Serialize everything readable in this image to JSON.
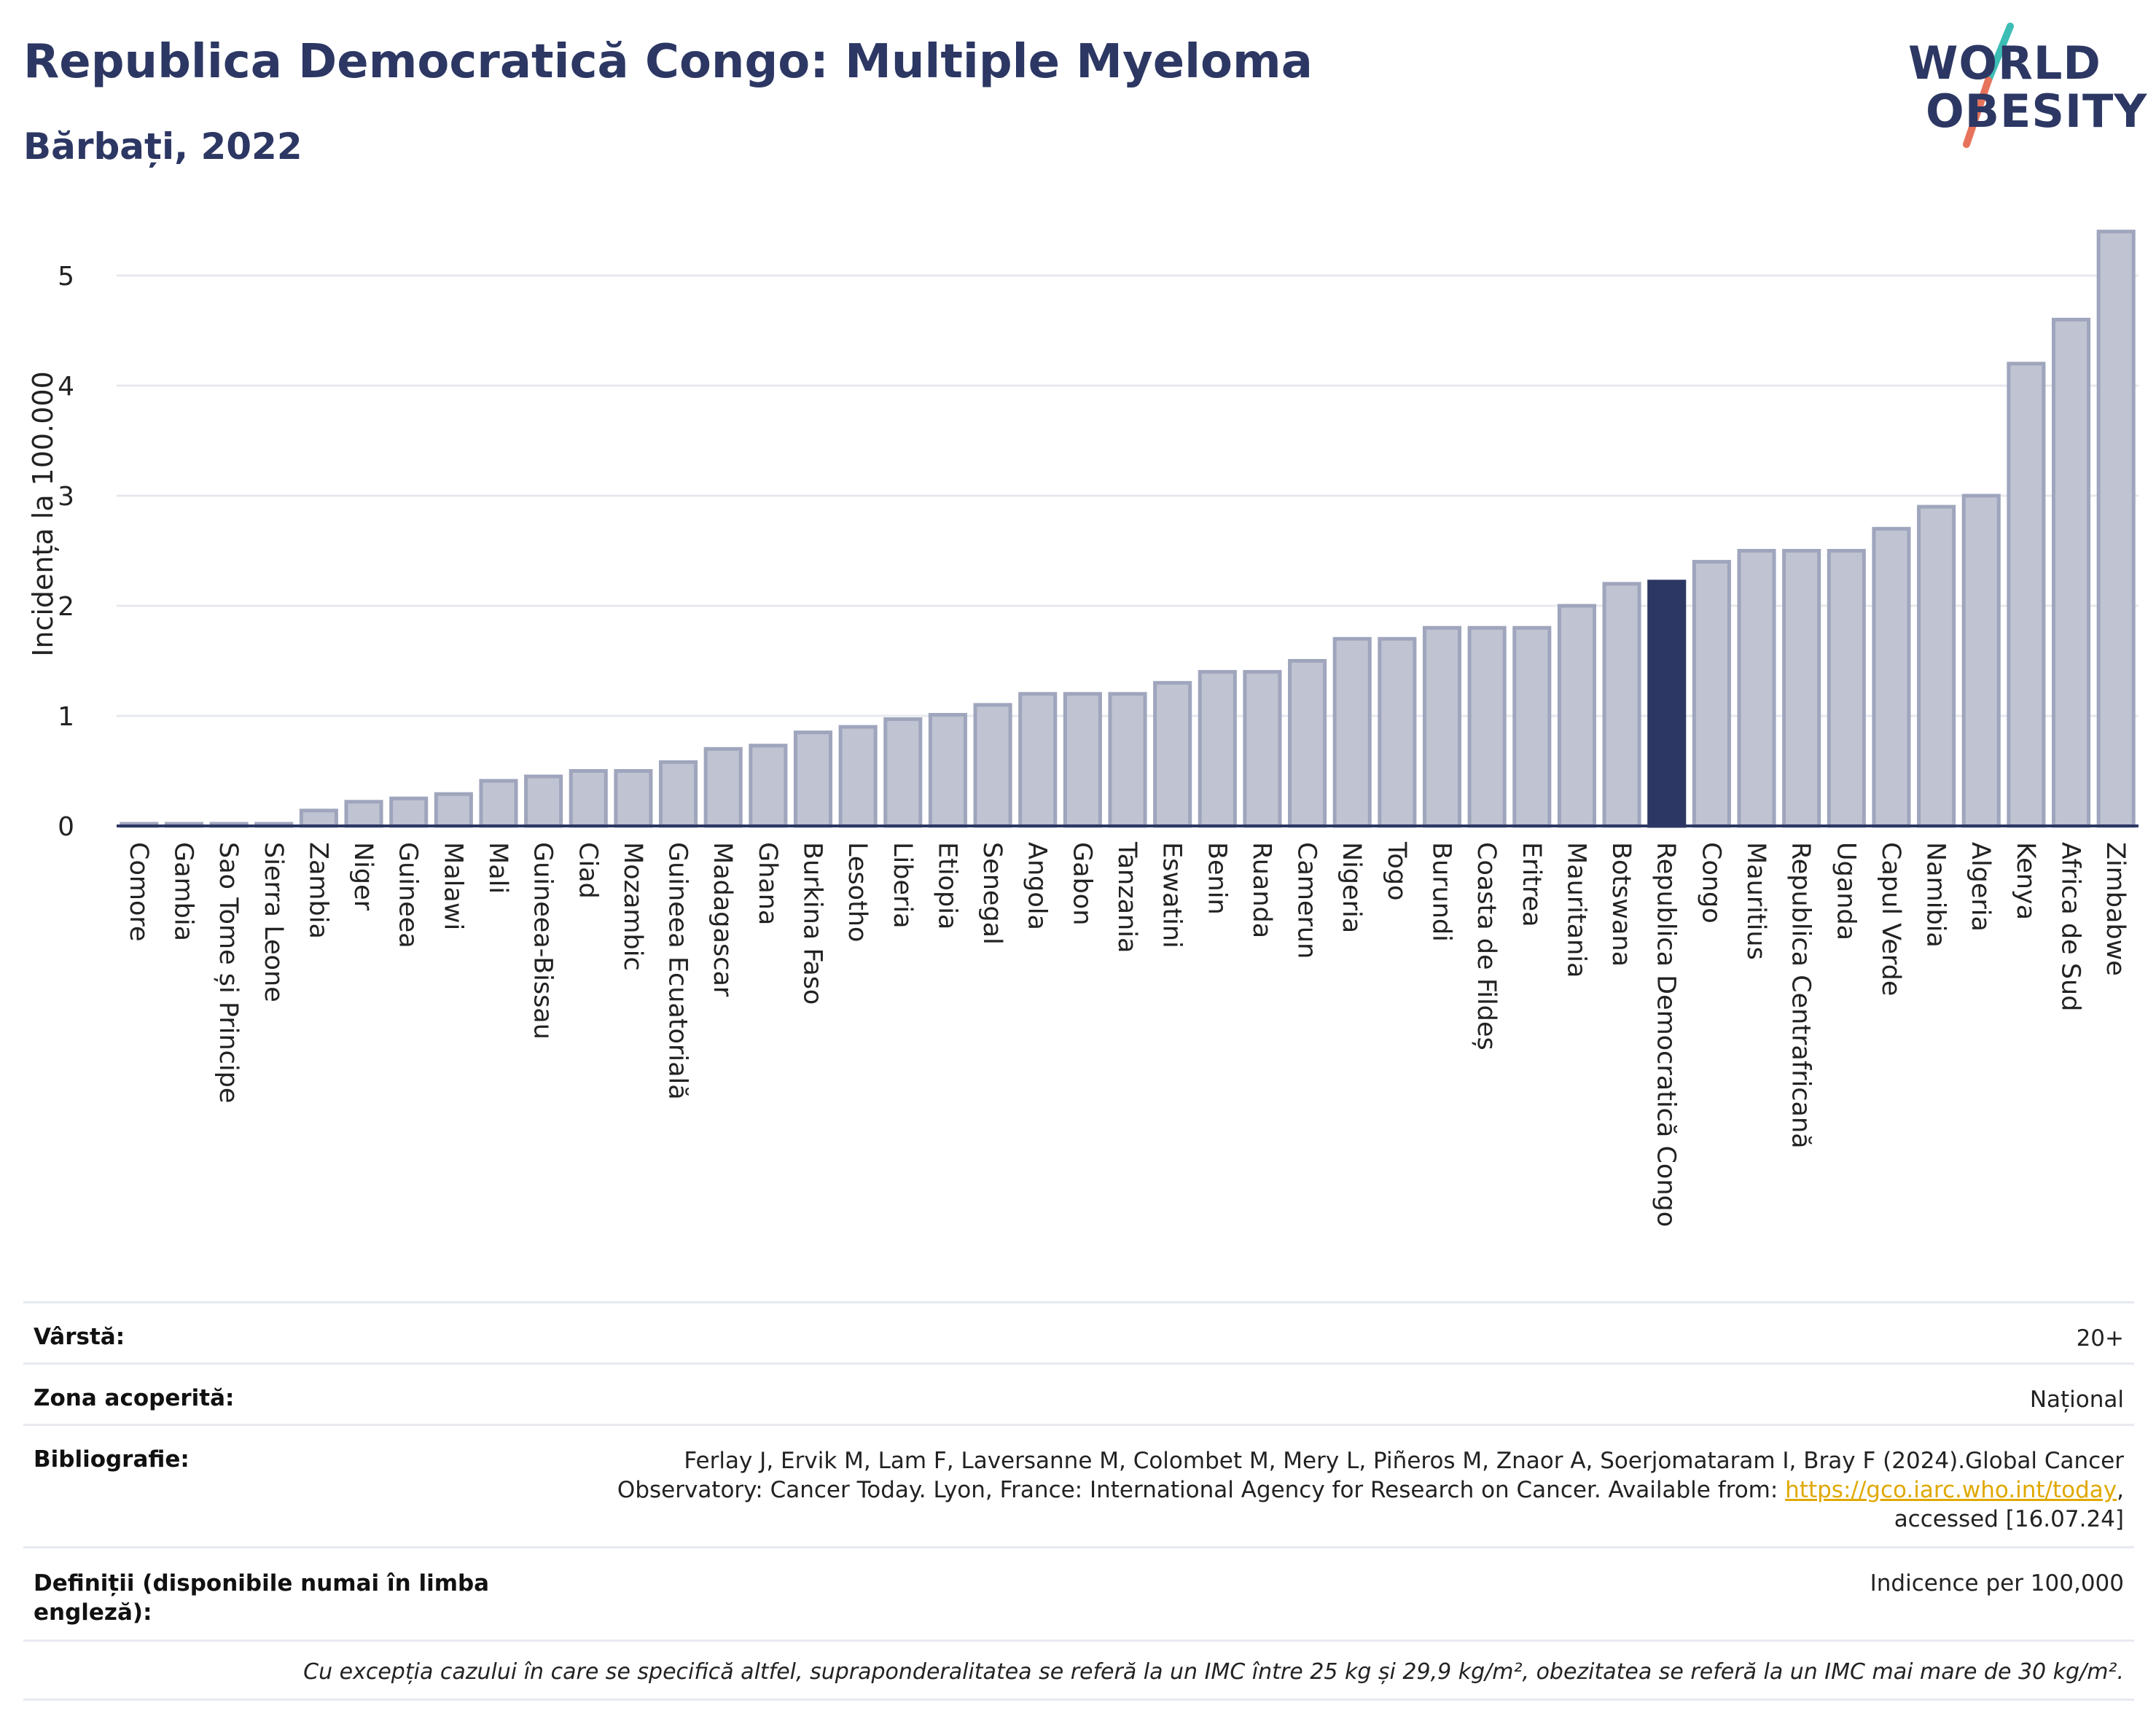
{
  "header": {
    "title": "Republica Democratică Congo: Multiple Myeloma",
    "subtitle": "Bărbați, 2022",
    "logo_line1": "WORLD",
    "logo_line2": "OBESITY"
  },
  "colors": {
    "title": "#2c3763",
    "bar": "#bfc3d2",
    "bar_border": "#9fa5bc",
    "highlight": "#2c3763",
    "logo_teal": "#3dbdb5",
    "logo_coral": "#e8735c",
    "link": "#e0a800"
  },
  "chart_data": {
    "type": "bar",
    "ylabel": "Incidența la 100.000",
    "xlabel": "",
    "ylim": [
      0,
      5.5
    ],
    "yticks": [
      0,
      1,
      2,
      3,
      4,
      5
    ],
    "grid": true,
    "highlight": "Republica Democratică Congo",
    "categories": [
      "Comore",
      "Gambia",
      "Sao Tome și Principe",
      "Sierra Leone",
      "Zambia",
      "Niger",
      "Guineea",
      "Malawi",
      "Mali",
      "Guineea-Bissau",
      "Ciad",
      "Mozambic",
      "Guineea Ecuatorială",
      "Madagascar",
      "Ghana",
      "Burkina Faso",
      "Lesotho",
      "Liberia",
      "Etiopia",
      "Senegal",
      "Angola",
      "Gabon",
      "Tanzania",
      "Eswatini",
      "Benin",
      "Ruanda",
      "Camerun",
      "Nigeria",
      "Togo",
      "Burundi",
      "Coasta de Fildeș",
      "Eritrea",
      "Mauritania",
      "Botswana",
      "Republica Democratică Congo",
      "Congo",
      "Mauritius",
      "Republica Centrafricană",
      "Uganda",
      "Capul Verde",
      "Namibia",
      "Algeria",
      "Kenya",
      "Africa de Sud",
      "Zimbabwe"
    ],
    "values": [
      0.01,
      0.01,
      0.01,
      0.01,
      0.14,
      0.22,
      0.25,
      0.29,
      0.41,
      0.45,
      0.5,
      0.5,
      0.58,
      0.7,
      0.73,
      0.85,
      0.9,
      0.97,
      1.01,
      1.1,
      1.2,
      1.2,
      1.2,
      1.3,
      1.4,
      1.4,
      1.5,
      1.7,
      1.7,
      1.8,
      1.8,
      1.8,
      2.0,
      2.2,
      2.22,
      2.4,
      2.5,
      2.5,
      2.5,
      2.7,
      2.9,
      3.0,
      4.2,
      4.6,
      5.4
    ]
  },
  "info": {
    "age_label": "Vârstă:",
    "age_value": "20+",
    "area_label": "Zona acoperită:",
    "area_value": "Național",
    "biblio_label": "Bibliografie:",
    "biblio_line1": "Ferlay J, Ervik M, Lam F, Laversanne M, Colombet M, Mery L, Piñeros M, Znaor A, Soerjomataram I, Bray F (2024).Global Cancer",
    "biblio_line2_pre": "Observatory: Cancer Today. Lyon, France: International Agency for Research on Cancer. Available from: ",
    "biblio_link": "https://gco.iarc.who.int/today",
    "biblio_line2_post": ",",
    "biblio_line3": "accessed [16.07.24]",
    "def_label": "Definiții (disponibile numai în limba engleză):",
    "def_value": "Indicence per 100,000",
    "footnote": "Cu excepția cazului în care se specifică altfel, supraponderalitatea se referă la un IMC între 25 kg și 29,9 kg/m², obezitatea se referă la un IMC mai mare de 30 kg/m²."
  }
}
